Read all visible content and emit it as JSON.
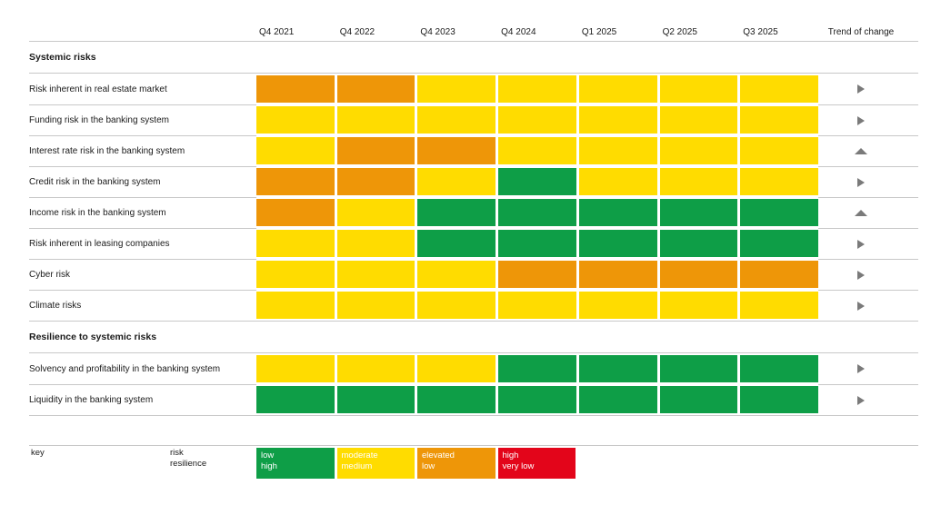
{
  "chart_data": {
    "type": "heatmap",
    "columns": [
      "Q4 2021",
      "Q4 2022",
      "Q4 2023",
      "Q4 2024",
      "Q1 2025",
      "Q2 2025",
      "Q3 2025"
    ],
    "trend_column_label": "Trend of change",
    "legend_position": "bottom",
    "levels": {
      "low": {
        "color": "#0E9E47",
        "risk_meaning": "low",
        "resilience_meaning": "high"
      },
      "moderate": {
        "color": "#FFDC00",
        "risk_meaning": "moderate",
        "resilience_meaning": "medium"
      },
      "elevated": {
        "color": "#EE9608",
        "risk_meaning": "elevated",
        "resilience_meaning": "low"
      },
      "high": {
        "color": "#E3051A",
        "risk_meaning": "high",
        "resilience_meaning": "very low"
      }
    },
    "key_order": [
      "low",
      "moderate",
      "elevated",
      "high"
    ],
    "key_labels": {
      "key": "key",
      "risk": "risk",
      "resilience": "resilience"
    },
    "trend_arrow_color": "#7a7a7a",
    "sections": [
      {
        "title": "Systemic risks",
        "rows": [
          {
            "label": "Risk inherent in real estate market",
            "cells": [
              "elevated",
              "elevated",
              "moderate",
              "moderate",
              "moderate",
              "moderate",
              "moderate"
            ],
            "trend": "right"
          },
          {
            "label": "Funding risk in the banking system",
            "cells": [
              "moderate",
              "moderate",
              "moderate",
              "moderate",
              "moderate",
              "moderate",
              "moderate"
            ],
            "trend": "right"
          },
          {
            "label": "Interest rate risk in the banking system",
            "cells": [
              "moderate",
              "elevated",
              "elevated",
              "moderate",
              "moderate",
              "moderate",
              "moderate"
            ],
            "trend": "up"
          },
          {
            "label": "Credit risk in the banking system",
            "cells": [
              "elevated",
              "elevated",
              "moderate",
              "low",
              "moderate",
              "moderate",
              "moderate"
            ],
            "trend": "right"
          },
          {
            "label": "Income risk in the banking system",
            "cells": [
              "elevated",
              "moderate",
              "low",
              "low",
              "low",
              "low",
              "low"
            ],
            "trend": "up"
          },
          {
            "label": "Risk inherent in leasing companies",
            "cells": [
              "moderate",
              "moderate",
              "low",
              "low",
              "low",
              "low",
              "low"
            ],
            "trend": "right"
          },
          {
            "label": "Cyber risk",
            "cells": [
              "moderate",
              "moderate",
              "moderate",
              "elevated",
              "elevated",
              "elevated",
              "elevated"
            ],
            "trend": "right"
          },
          {
            "label": "Climate risks",
            "cells": [
              "moderate",
              "moderate",
              "moderate",
              "moderate",
              "moderate",
              "moderate",
              "moderate"
            ],
            "trend": "right"
          }
        ]
      },
      {
        "title": "Resilience to systemic risks",
        "rows": [
          {
            "label": "Solvency and profitability in the banking system",
            "cells": [
              "moderate",
              "moderate",
              "moderate",
              "low",
              "low",
              "low",
              "low"
            ],
            "trend": "right"
          },
          {
            "label": "Liquidity in the banking system",
            "cells": [
              "low",
              "low",
              "low",
              "low",
              "low",
              "low",
              "low"
            ],
            "trend": "right"
          }
        ]
      }
    ]
  }
}
